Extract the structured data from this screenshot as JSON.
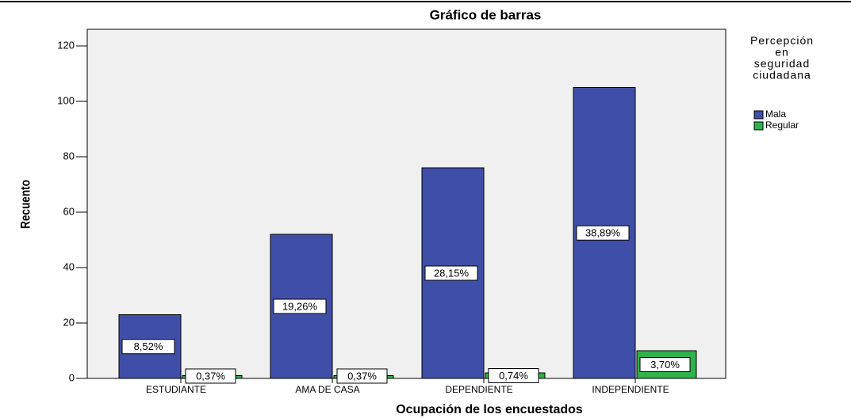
{
  "chart_data": {
    "type": "bar",
    "title": "Gráfico de barras",
    "x_label": "Ocupación de los encuestados",
    "y_label": "Recuento",
    "legend_title": "Percepción en seguridad ciudadana",
    "legend_position": "right",
    "categories": [
      "ESTUDIANTE",
      "AMA DE CASA",
      "DEPENDIENTE",
      "INDEPENDIENTE"
    ],
    "series": [
      {
        "name": "Mala",
        "color": "#3f4fa8",
        "values": [
          23,
          52,
          76,
          105
        ],
        "percent_labels": [
          "8,52%",
          "19,26%",
          "28,15%",
          "38,89%"
        ]
      },
      {
        "name": "Regular",
        "color": "#2fb24a",
        "values": [
          1,
          1,
          2,
          10
        ],
        "percent_labels": [
          "0,37%",
          "0,37%",
          "0,74%",
          "3,70%"
        ]
      }
    ],
    "ylim": [
      0,
      126
    ],
    "yticks": [
      0,
      20,
      40,
      60,
      80,
      100,
      120
    ],
    "grid": false
  }
}
